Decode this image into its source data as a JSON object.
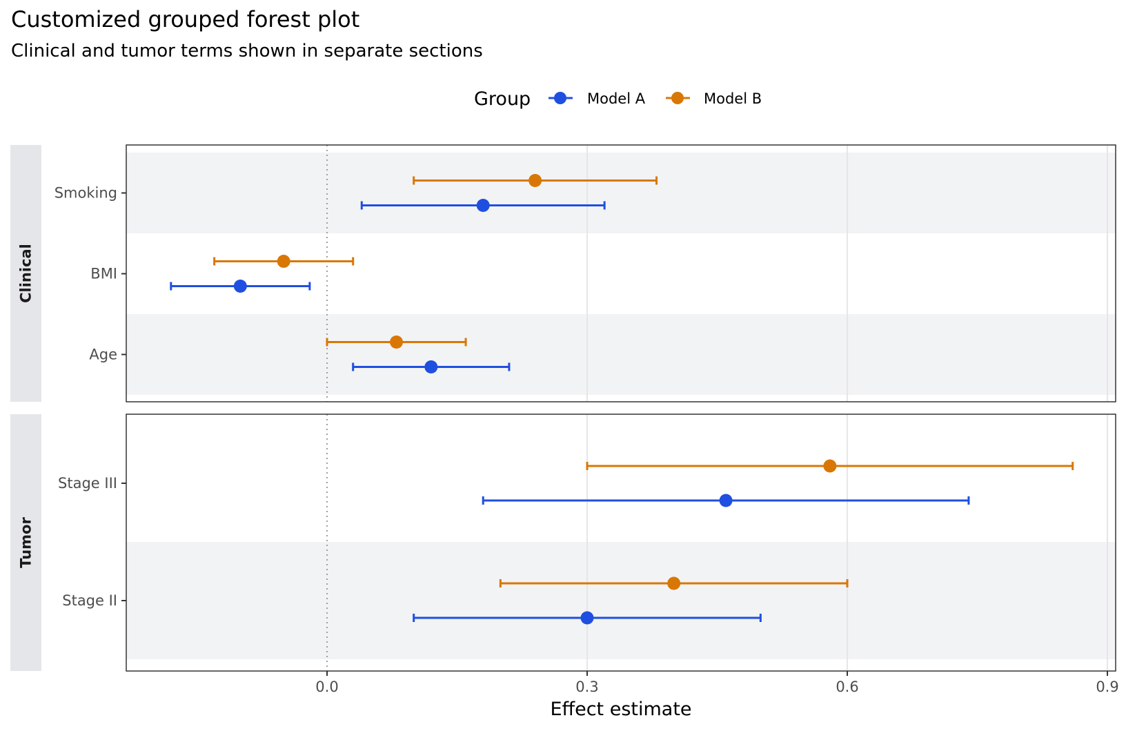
{
  "chart_data": {
    "type": "forest",
    "title": "Customized grouped forest plot",
    "subtitle": "Clinical and tumor terms shown in separate sections",
    "xlabel": "Effect estimate",
    "xlim": [
      -0.231,
      0.912
    ],
    "xticks": [
      0.0,
      0.3,
      0.6,
      0.9
    ],
    "xtick_labels": [
      "0.0",
      "0.3",
      "0.6",
      "0.9"
    ],
    "reference_line": 0.0,
    "legend": {
      "title": "Group",
      "position": "top",
      "entries": [
        {
          "name": "Model A",
          "color": "#1f4fe0"
        },
        {
          "name": "Model B",
          "color": "#d97706"
        }
      ]
    },
    "panels": [
      {
        "name": "Clinical",
        "terms": [
          {
            "label": "Smoking",
            "shaded": true,
            "estimates": [
              {
                "group": "Model B",
                "estimate": 0.24,
                "lower": 0.1,
                "upper": 0.38
              },
              {
                "group": "Model A",
                "estimate": 0.18,
                "lower": 0.04,
                "upper": 0.32
              }
            ]
          },
          {
            "label": "BMI",
            "shaded": false,
            "estimates": [
              {
                "group": "Model B",
                "estimate": -0.05,
                "lower": -0.13,
                "upper": 0.03
              },
              {
                "group": "Model A",
                "estimate": -0.1,
                "lower": -0.18,
                "upper": -0.02
              }
            ]
          },
          {
            "label": "Age",
            "shaded": true,
            "estimates": [
              {
                "group": "Model B",
                "estimate": 0.08,
                "lower": 0.0,
                "upper": 0.16
              },
              {
                "group": "Model A",
                "estimate": 0.12,
                "lower": 0.03,
                "upper": 0.21
              }
            ]
          }
        ]
      },
      {
        "name": "Tumor",
        "terms": [
          {
            "label": "Stage III",
            "shaded": false,
            "estimates": [
              {
                "group": "Model B",
                "estimate": 0.58,
                "lower": 0.3,
                "upper": 0.86
              },
              {
                "group": "Model A",
                "estimate": 0.46,
                "lower": 0.18,
                "upper": 0.74
              }
            ]
          },
          {
            "label": "Stage II",
            "shaded": true,
            "estimates": [
              {
                "group": "Model B",
                "estimate": 0.4,
                "lower": 0.2,
                "upper": 0.6
              },
              {
                "group": "Model A",
                "estimate": 0.3,
                "lower": 0.1,
                "upper": 0.5
              }
            ]
          }
        ]
      }
    ]
  }
}
